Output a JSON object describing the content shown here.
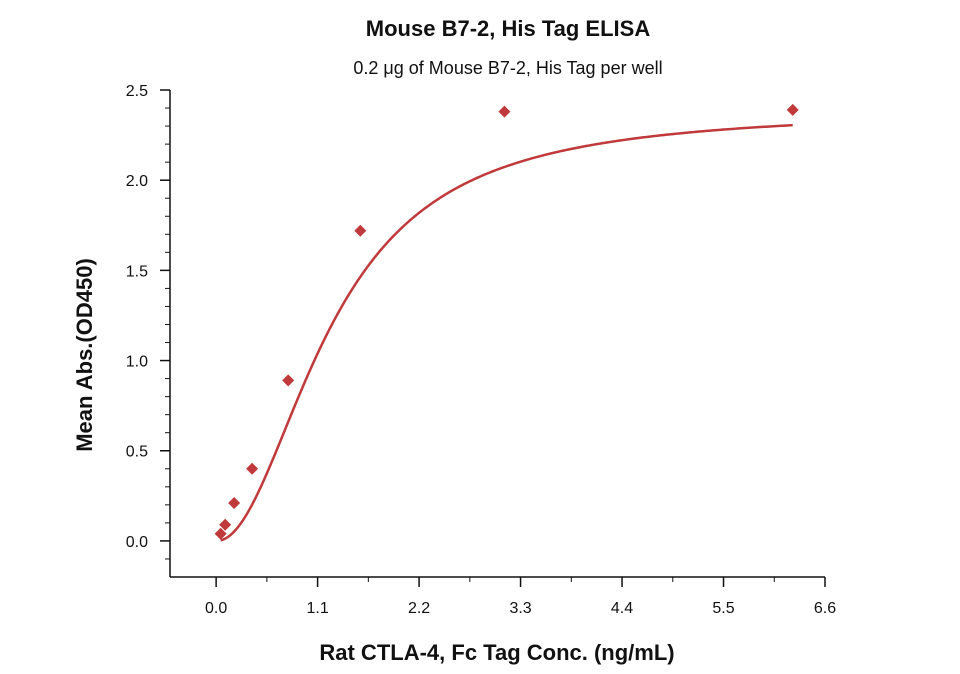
{
  "chart_data": {
    "type": "scatter",
    "title": "Mouse B7-2, His Tag ELISA",
    "subtitle": "0.2 μg of Mouse B7-2, His Tag per well",
    "xlabel": "Rat CTLA-4, Fc Tag Conc. (ng/mL)",
    "ylabel": "Mean Abs.(OD450)",
    "xlim": [
      -0.5,
      6.6
    ],
    "ylim": [
      -0.2,
      2.5
    ],
    "x_ticks": [
      "0.0",
      "1.1",
      "2.2",
      "3.3",
      "4.4",
      "5.5",
      "6.6"
    ],
    "y_ticks": [
      "0.0",
      "0.5",
      "1.0",
      "1.5",
      "2.0",
      "2.5"
    ],
    "grid": false,
    "colors": {
      "series": "#c0393b",
      "axis": "#111111"
    },
    "series": [
      {
        "x": [
          0.049,
          0.098,
          0.195,
          0.39,
          0.781,
          1.563,
          3.125,
          6.25
        ],
        "y": [
          0.04,
          0.09,
          0.21,
          0.4,
          0.89,
          1.72,
          2.38,
          2.39
        ]
      }
    ],
    "fit_curve": {
      "type": "4PL",
      "bottom": 0.0,
      "top": 2.39,
      "ec50": 1.25,
      "hill": 2.05
    }
  }
}
